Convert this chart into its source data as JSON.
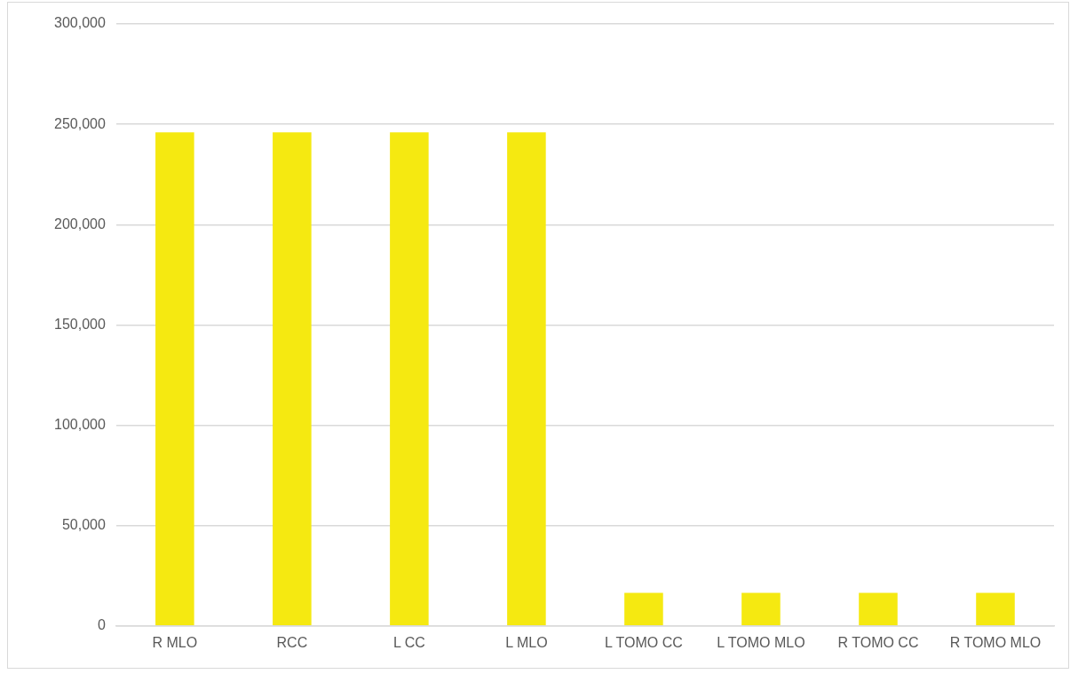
{
  "chart_data": {
    "type": "bar",
    "categories": [
      "R MLO",
      "RCC",
      "L CC",
      "L MLO",
      "L TOMO CC",
      "L TOMO MLO",
      "R TOMO CC",
      "R TOMO MLO"
    ],
    "values": [
      246000,
      246000,
      246000,
      246000,
      16500,
      16500,
      16500,
      16500
    ],
    "color": "#f5e911",
    "ylim": [
      0,
      300000
    ],
    "yticks": [
      {
        "value": 0,
        "label": "0"
      },
      {
        "value": 50000,
        "label": "50,000"
      },
      {
        "value": 100000,
        "label": "100,000"
      },
      {
        "value": 150000,
        "label": "150,000"
      },
      {
        "value": 200000,
        "label": "200,000"
      },
      {
        "value": 250000,
        "label": "250,000"
      },
      {
        "value": 300000,
        "label": "300,000"
      }
    ],
    "grid": "y",
    "legend": false
  }
}
